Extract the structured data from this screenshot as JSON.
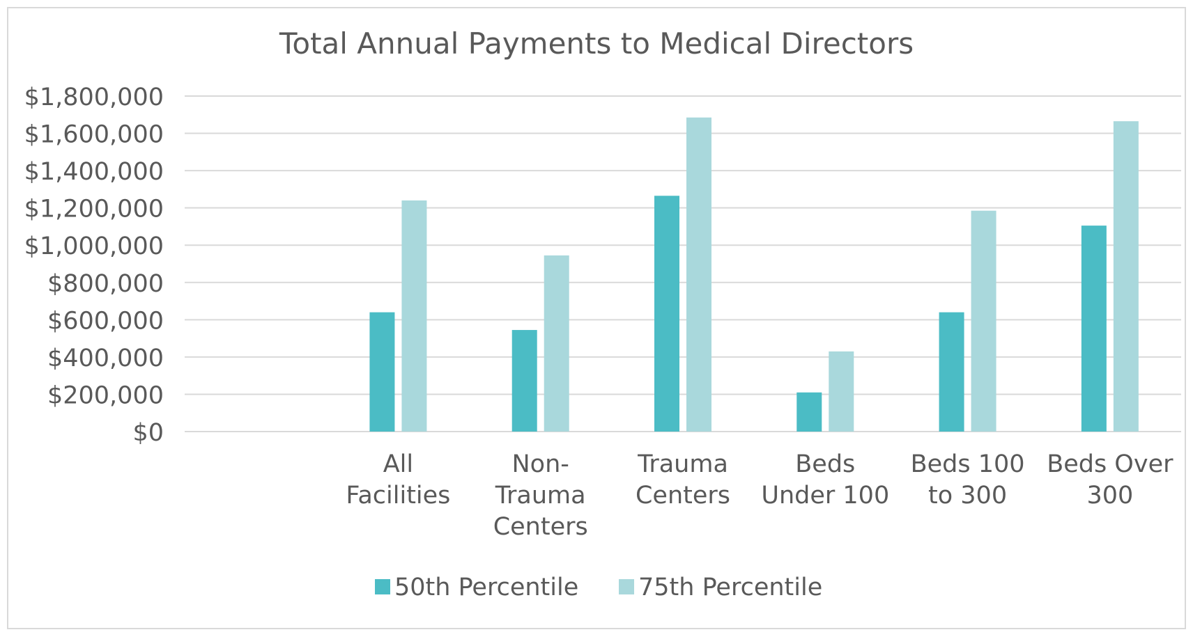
{
  "chart_data": {
    "type": "bar",
    "title": "Total Annual Payments to Medical Directors",
    "xlabel": "",
    "ylabel": "",
    "ylim": [
      0,
      1800000
    ],
    "yticks": [
      0,
      200000,
      400000,
      600000,
      800000,
      1000000,
      1200000,
      1400000,
      1600000,
      1800000
    ],
    "ytick_labels": [
      "$0",
      "$200,000",
      "$400,000",
      "$600,000",
      "$800,000",
      "$1,000,000",
      "$1,200,000",
      "$1,400,000",
      "$1,600,000",
      "$1,800,000"
    ],
    "categories": [
      "",
      "All Facilities",
      "Non-Trauma Centers",
      "Trauma Centers",
      "Beds Under 100",
      "Beds 100 to 300",
      "Beds Over 300"
    ],
    "category_label_lines": [
      [],
      [
        "All",
        "Facilities"
      ],
      [
        "Non-",
        "Trauma",
        "Centers"
      ],
      [
        "Trauma",
        "Centers"
      ],
      [
        "Beds",
        "Under 100"
      ],
      [
        "Beds 100",
        "to 300"
      ],
      [
        "Beds Over",
        "300"
      ]
    ],
    "series": [
      {
        "name": "50th Percentile",
        "color": "#4BBCC5",
        "values": [
          null,
          640000,
          545000,
          1265000,
          210000,
          640000,
          1105000
        ]
      },
      {
        "name": "75th Percentile",
        "color": "#A9D8DC",
        "values": [
          null,
          1240000,
          945000,
          1685000,
          430000,
          1185000,
          1665000
        ]
      }
    ],
    "grid": true,
    "legend_position": "bottom"
  }
}
